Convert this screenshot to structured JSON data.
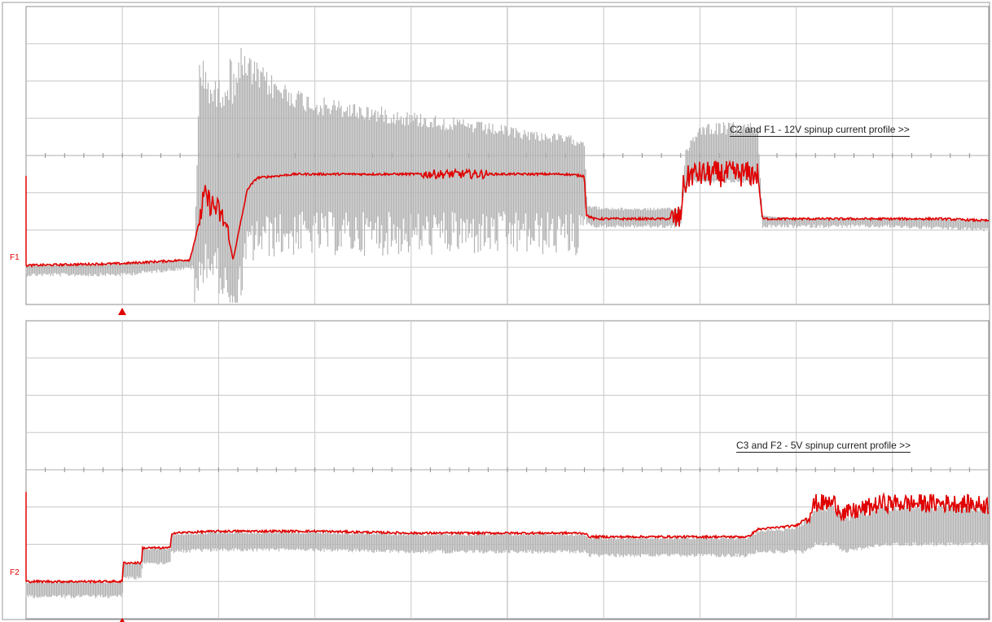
{
  "colors": {
    "grid": "#c8c8c8",
    "envelope": "#b4b4b4",
    "trace": "#e00000",
    "frame": "#9a9a9a"
  },
  "chart_data": [
    {
      "type": "line",
      "annotation": "C2 and F1 - 12V spinup current profile >>",
      "marker": "F1",
      "grid": true,
      "xlim": [
        0,
        10
      ],
      "ylim": [
        0,
        8
      ],
      "series": [
        {
          "x": [
            0,
            1.0,
            1.7,
            1.78,
            1.85,
            2.0,
            2.08,
            2.15,
            2.3,
            2.4,
            2.8,
            3.5,
            4.0,
            4.5,
            5.0,
            5.3,
            5.6,
            5.8,
            5.82,
            5.9,
            6.0,
            6.5,
            6.8,
            6.82,
            6.9,
            7.6,
            7.65,
            8.0,
            8.5,
            9.0,
            9.5,
            10.0
          ],
          "y": [
            1.05,
            1.1,
            1.2,
            2.0,
            2.9,
            2.5,
            2.1,
            1.2,
            3.1,
            3.4,
            3.5,
            3.5,
            3.5,
            3.5,
            3.5,
            3.5,
            3.5,
            3.45,
            2.4,
            2.3,
            2.3,
            2.3,
            2.3,
            3.1,
            3.5,
            3.5,
            2.3,
            2.3,
            2.3,
            2.3,
            2.3,
            2.25
          ]
        },
        {
          "x": [
            0,
            1.0,
            1.75,
            1.8,
            1.95,
            2.0,
            2.2,
            2.4,
            2.6,
            3.0,
            3.5,
            4.0,
            4.5,
            5.0,
            5.5,
            5.8,
            5.83,
            6.0,
            6.8,
            6.85,
            7.0,
            7.5,
            7.6,
            7.65,
            8.0,
            9.0,
            10.0
          ],
          "y": [
            1.0,
            1.0,
            1.2,
            6.8,
            6.0,
            6.1,
            7.0,
            6.5,
            6.1,
            5.6,
            5.4,
            5.2,
            5.0,
            4.8,
            4.6,
            4.5,
            2.7,
            2.6,
            2.6,
            4.2,
            4.9,
            4.9,
            4.9,
            2.4,
            2.3,
            2.3,
            2.2
          ]
        }
      ]
    },
    {
      "type": "line",
      "annotation": "C3 and F2 - 5V spinup current profile >>",
      "marker": "F2",
      "grid": true,
      "xlim": [
        0,
        10
      ],
      "ylim": [
        0,
        8
      ],
      "series": [
        {
          "x": [
            0,
            1.0,
            1.01,
            1.2,
            1.21,
            1.5,
            1.51,
            2.0,
            3.0,
            4.0,
            5.0,
            5.8,
            5.85,
            6.5,
            7.5,
            7.6,
            8.0,
            8.1,
            8.2,
            8.4,
            8.5,
            8.9,
            9.0,
            9.5,
            9.6,
            10.0
          ],
          "y": [
            1.0,
            1.0,
            1.5,
            1.5,
            1.9,
            1.9,
            2.3,
            2.35,
            2.35,
            2.3,
            2.3,
            2.3,
            2.2,
            2.2,
            2.2,
            2.4,
            2.5,
            2.7,
            3.1,
            3.1,
            2.8,
            3.1,
            3.1,
            3.1,
            3.1,
            3.05
          ]
        },
        {
          "x": [
            0,
            1.0,
            1.01,
            1.2,
            1.21,
            1.5,
            1.51,
            2.0,
            3.0,
            4.0,
            5.0,
            5.8,
            5.85,
            6.5,
            7.5,
            7.6,
            8.0,
            8.1,
            8.2,
            8.4,
            8.5,
            8.9,
            9.0,
            9.5,
            9.6,
            10.0
          ],
          "y": [
            0.8,
            0.8,
            1.3,
            1.3,
            1.7,
            1.7,
            2.0,
            2.05,
            2.05,
            2.0,
            2.0,
            2.0,
            1.9,
            1.9,
            1.9,
            2.0,
            2.0,
            2.0,
            2.2,
            2.2,
            2.0,
            2.2,
            2.2,
            2.2,
            2.2,
            2.2
          ]
        }
      ]
    }
  ]
}
